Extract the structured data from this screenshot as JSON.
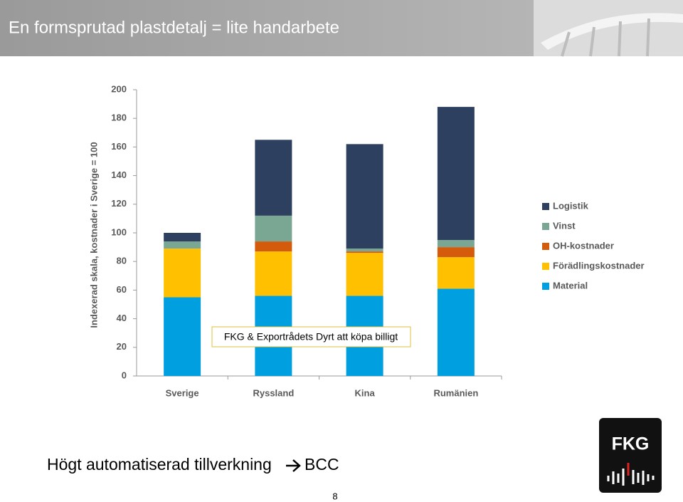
{
  "header": {
    "title": "En formsprutad plastdetalj = lite handarbete"
  },
  "chart_data": {
    "type": "bar",
    "stacked": true,
    "ylabel": "Indexerad skala, kostnader i Sverige = 100",
    "categories": [
      "Sverige",
      "Ryssland",
      "Kina",
      "Rumänien"
    ],
    "series": [
      {
        "name": "Material",
        "color": "#00a0e0",
        "values": [
          55,
          56,
          56,
          61
        ]
      },
      {
        "name": "Förädlingskostnader",
        "color": "#ffc000",
        "values": [
          34,
          31,
          30,
          22
        ]
      },
      {
        "name": "OH-kostnader",
        "color": "#d45b0c",
        "values": [
          0,
          7,
          1,
          7
        ]
      },
      {
        "name": "Vinst",
        "color": "#7aa694",
        "values": [
          5,
          18,
          2,
          5
        ]
      },
      {
        "name": "Logistik",
        "color": "#2e4060",
        "values": [
          6,
          53,
          73,
          93
        ]
      }
    ],
    "ylim": [
      0,
      200
    ],
    "yticks": [
      0,
      20,
      40,
      60,
      80,
      100,
      120,
      140,
      160,
      180,
      200
    ],
    "legend": "right",
    "annotation": "FKG & Exportrådets Dyrt att köpa billigt"
  },
  "footer": {
    "text": "Högt automatiserad tillverkning",
    "target": "BCC",
    "page": "8",
    "logo": "FKG"
  }
}
